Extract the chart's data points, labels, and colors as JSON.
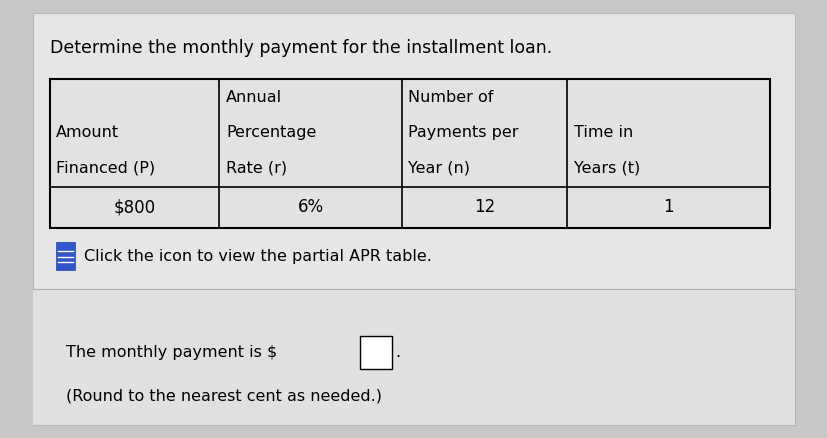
{
  "title": "Determine the monthly payment for the installment loan.",
  "title_fontsize": 12.5,
  "bg_color": "#c8c8c8",
  "card_color": "#e6e6e6",
  "bottom_color": "#e0e0e0",
  "table_bg": "#e2e2e2",
  "col_headers": [
    [
      "",
      "Amount",
      "Financed (P)"
    ],
    [
      "Annual",
      "Percentage",
      "Rate (r)"
    ],
    [
      "Number of",
      "Payments per",
      "Year (n)"
    ],
    [
      "",
      "Time in",
      "Years (t)"
    ]
  ],
  "col_alignments": [
    "left",
    "left",
    "left",
    "left"
  ],
  "data_row": [
    "$800",
    "6%",
    "12",
    "1"
  ],
  "icon_text": "Click the icon to view the partial APR table.",
  "answer_text": "The monthly payment is $",
  "answer_line2": "(Round to the nearest cent as needed.)",
  "text_fontsize": 11.5,
  "header_fontsize": 11.5,
  "data_fontsize": 12
}
